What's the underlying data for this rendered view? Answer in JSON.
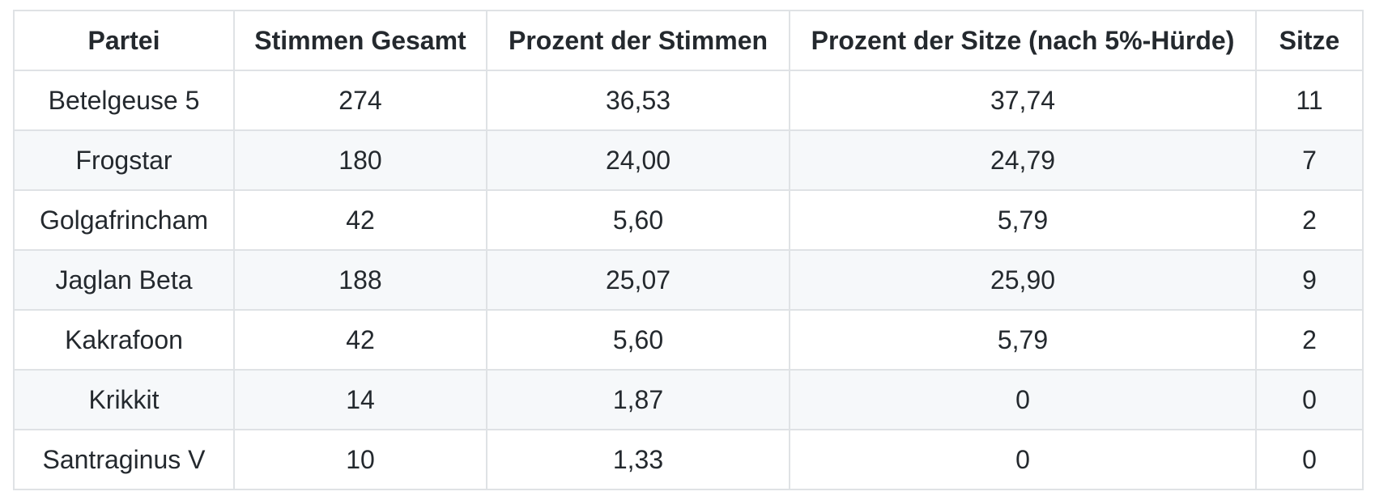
{
  "chart_data": {
    "type": "table",
    "columns": [
      "Partei",
      "Stimmen Gesamt",
      "Prozent der Stimmen",
      "Prozent der Sitze (nach 5%-Hürde)",
      "Sitze"
    ],
    "rows": [
      [
        "Betelgeuse 5",
        "274",
        "36,53",
        "37,74",
        "11"
      ],
      [
        "Frogstar",
        "180",
        "24,00",
        "24,79",
        "7"
      ],
      [
        "Golgafrincham",
        "42",
        "5,60",
        "5,79",
        "2"
      ],
      [
        "Jaglan Beta",
        "188",
        "25,07",
        "25,90",
        "9"
      ],
      [
        "Kakrafoon",
        "42",
        "5,60",
        "5,79",
        "2"
      ],
      [
        "Krikkit",
        "14",
        "1,87",
        "0",
        "0"
      ],
      [
        "Santraginus V",
        "10",
        "1,33",
        "0",
        "0"
      ]
    ],
    "layout_hints": {
      "zebra_striping": "even rows shaded",
      "alignment": "all cells centered",
      "grid": "full cell borders"
    }
  },
  "colors": {
    "text": "#24292e",
    "border": "#dfe2e5",
    "stripe": "#f6f8fa",
    "background": "#ffffff"
  }
}
